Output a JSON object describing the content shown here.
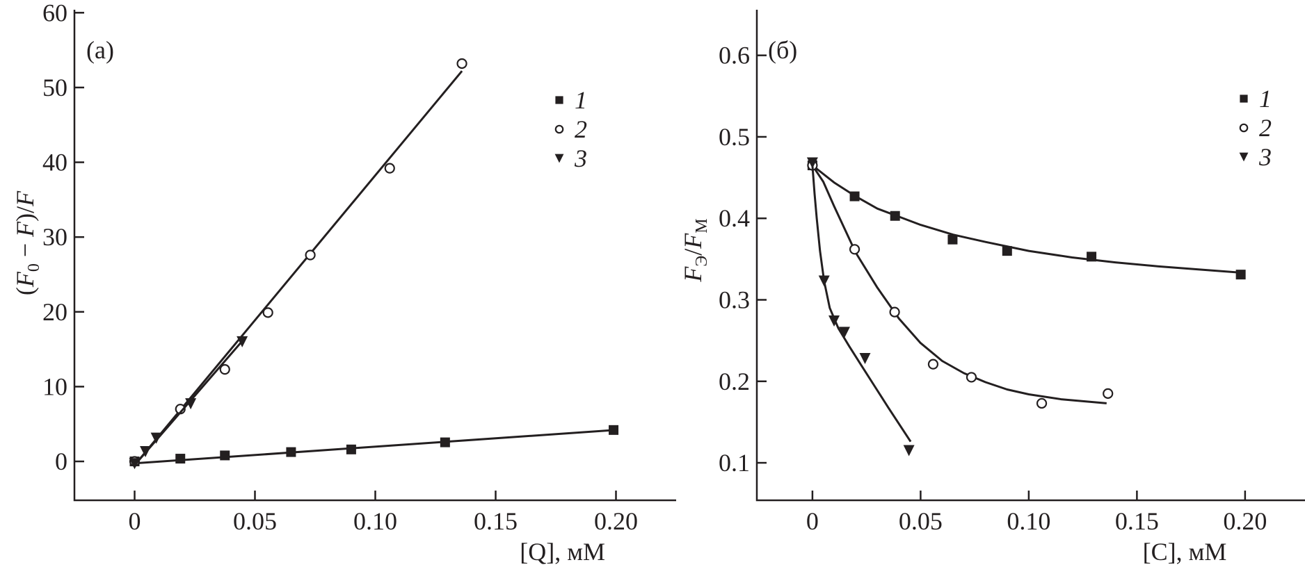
{
  "chart_data": [
    {
      "type": "scatter",
      "panel_label": "(а)",
      "xlabel": "[Q], мМ",
      "ylabel_parts": {
        "open": "(",
        "f0": "F",
        "sub0": "0",
        "mid": " − ",
        "f": "F",
        "close": ")/",
        "f2": "F"
      },
      "xlim": [
        -0.025,
        0.225
      ],
      "ylim": [
        -5.2,
        60.4
      ],
      "xticks": [
        0,
        0.05,
        0.1,
        0.15,
        0.2
      ],
      "xtick_labels": [
        "0",
        "0.05",
        "0.10",
        "0.15",
        "0.20"
      ],
      "yticks": [
        0,
        10,
        20,
        30,
        40,
        50,
        60
      ],
      "ytick_labels": [
        "0",
        "10",
        "20",
        "30",
        "40",
        "50",
        "60"
      ],
      "grid": false,
      "legend_position": "top-right",
      "color": "#231f20",
      "series": [
        {
          "name": "1",
          "marker": "square",
          "points": [
            [
              0,
              0
            ],
            [
              0.019,
              0.37
            ],
            [
              0.0375,
              0.8
            ],
            [
              0.065,
              1.25
            ],
            [
              0.09,
              1.6
            ],
            [
              0.129,
              2.55
            ],
            [
              0.199,
              4.2
            ]
          ],
          "fit": [
            [
              -0.002,
              -0.3
            ],
            [
              0.2,
              4.2
            ]
          ]
        },
        {
          "name": "2",
          "marker": "circle",
          "points": [
            [
              0,
              0
            ],
            [
              0.019,
              7.0
            ],
            [
              0.0375,
              12.3
            ],
            [
              0.0554,
              19.9
            ],
            [
              0.073,
              27.6
            ],
            [
              0.106,
              39.2
            ],
            [
              0.136,
              53.2
            ]
          ],
          "fit": [
            [
              0,
              -0.5
            ],
            [
              0.136,
              52.2
            ]
          ]
        },
        {
          "name": "3",
          "marker": "triangle-down",
          "points": [
            [
              0,
              -0.3
            ],
            [
              0.0045,
              1.3
            ],
            [
              0.009,
              3.1
            ],
            [
              0.0233,
              7.7
            ],
            [
              0.0447,
              16.0
            ]
          ],
          "fit": [
            [
              0,
              -0.5
            ],
            [
              0.045,
              16.2
            ]
          ]
        }
      ]
    },
    {
      "type": "scatter",
      "panel_label": "(б)",
      "xlabel": "[C], мМ",
      "ylabel_parts": {
        "f": "F",
        "sub1": "Э",
        "slash": "/",
        "f2": "F",
        "sub2": "М"
      },
      "xlim": [
        -0.0257,
        0.2277
      ],
      "ylim": [
        0.054,
        0.656
      ],
      "xticks": [
        0,
        0.05,
        0.1,
        0.15,
        0.2
      ],
      "xtick_labels": [
        "0",
        "0.05",
        "0.10",
        "0.15",
        "0.20"
      ],
      "yticks": [
        0.1,
        0.2,
        0.3,
        0.4,
        0.5,
        0.6
      ],
      "ytick_labels": [
        "0.1",
        "0.2",
        "0.3",
        "0.4",
        "0.5",
        "0.6"
      ],
      "grid": false,
      "legend_position": "top-right",
      "color": "#231f20",
      "series": [
        {
          "name": "1",
          "marker": "square",
          "points": [
            [
              0,
              0.465
            ],
            [
              0.0195,
              0.427
            ],
            [
              0.0382,
              0.403
            ],
            [
              0.0648,
              0.374
            ],
            [
              0.09,
              0.36
            ],
            [
              0.129,
              0.353
            ],
            [
              0.198,
              0.331
            ]
          ],
          "fit": [
            [
              0,
              0.465
            ],
            [
              0.01,
              0.444
            ],
            [
              0.02,
              0.427
            ],
            [
              0.03,
              0.412
            ],
            [
              0.04,
              0.402
            ],
            [
              0.05,
              0.392
            ],
            [
              0.065,
              0.38
            ],
            [
              0.08,
              0.371
            ],
            [
              0.1,
              0.36
            ],
            [
              0.12,
              0.352
            ],
            [
              0.14,
              0.346
            ],
            [
              0.16,
              0.341
            ],
            [
              0.18,
              0.337
            ],
            [
              0.2,
              0.333
            ]
          ]
        },
        {
          "name": "2",
          "marker": "circle",
          "points": [
            [
              0,
              0.465
            ],
            [
              0.0195,
              0.362
            ],
            [
              0.038,
              0.285
            ],
            [
              0.0558,
              0.221
            ],
            [
              0.0735,
              0.205
            ],
            [
              0.106,
              0.173
            ],
            [
              0.1366,
              0.185
            ]
          ],
          "fit": [
            [
              0,
              0.465
            ],
            [
              0.005,
              0.445
            ],
            [
              0.01,
              0.415
            ],
            [
              0.02,
              0.358
            ],
            [
              0.03,
              0.315
            ],
            [
              0.04,
              0.277
            ],
            [
              0.05,
              0.247
            ],
            [
              0.06,
              0.225
            ],
            [
              0.07,
              0.21
            ],
            [
              0.08,
              0.199
            ],
            [
              0.09,
              0.19
            ],
            [
              0.1,
              0.184
            ],
            [
              0.115,
              0.178
            ],
            [
              0.136,
              0.173
            ]
          ]
        },
        {
          "name": "3",
          "marker": "triangle-down",
          "points": [
            [
              0,
              0.468
            ],
            [
              0.0054,
              0.323
            ],
            [
              0.01,
              0.274
            ],
            [
              0.0148,
              0.26
            ],
            [
              0.0243,
              0.228
            ],
            [
              0.0446,
              0.115
            ]
          ],
          "fit": [
            [
              0,
              0.465
            ],
            [
              0.001,
              0.43
            ],
            [
              0.002,
              0.4
            ],
            [
              0.0035,
              0.36
            ],
            [
              0.0054,
              0.323
            ],
            [
              0.008,
              0.29
            ],
            [
              0.012,
              0.265
            ],
            [
              0.017,
              0.243
            ],
            [
              0.023,
              0.218
            ],
            [
              0.029,
              0.193
            ],
            [
              0.035,
              0.168
            ],
            [
              0.0454,
              0.126
            ]
          ]
        }
      ]
    }
  ]
}
